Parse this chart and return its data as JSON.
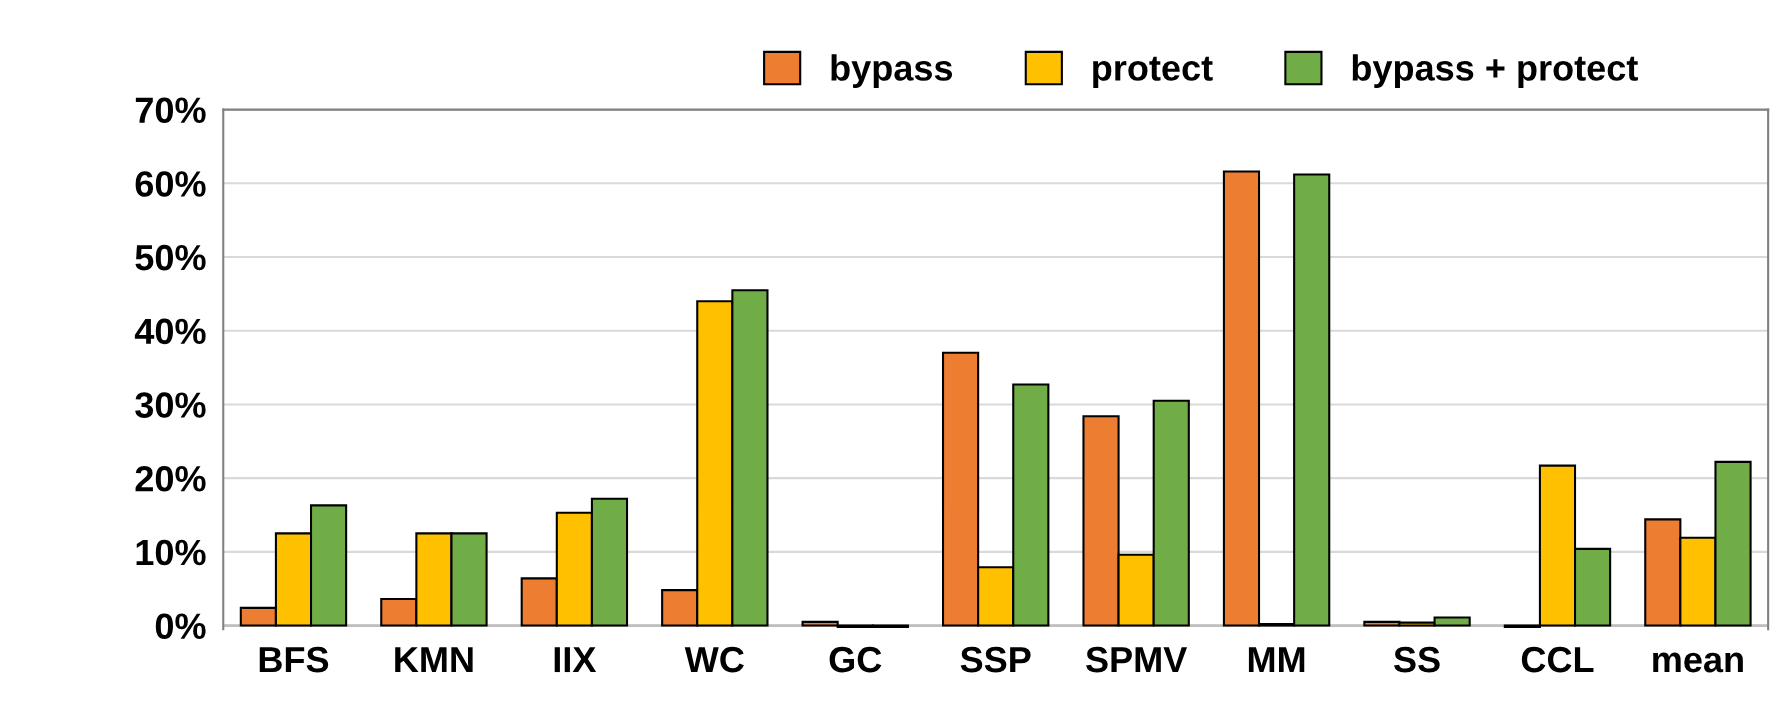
{
  "chart_data": {
    "type": "bar",
    "categories": [
      "BFS",
      "KMN",
      "IIX",
      "WC",
      "GC",
      "SSP",
      "SPMV",
      "MM",
      "SS",
      "CCL",
      "mean"
    ],
    "series": [
      {
        "name": "bypass",
        "color": "#ed7d31",
        "values": [
          2.4,
          3.6,
          6.4,
          4.8,
          0.5,
          37.0,
          28.4,
          61.6,
          0.5,
          -0.2,
          14.4
        ]
      },
      {
        "name": "protect",
        "color": "#ffc000",
        "values": [
          12.5,
          12.5,
          15.3,
          44.0,
          -0.2,
          7.9,
          9.6,
          0.2,
          0.4,
          21.7,
          11.9
        ]
      },
      {
        "name": "bypass + protect",
        "color": "#70ad47",
        "values": [
          16.3,
          12.5,
          17.2,
          45.5,
          -0.2,
          32.7,
          30.5,
          61.2,
          1.1,
          10.4,
          22.2
        ]
      }
    ],
    "ylim": [
      -0.5,
      70
    ],
    "yticks": [
      {
        "value": 0,
        "label": "0%"
      },
      {
        "value": 10,
        "label": "10%"
      },
      {
        "value": 20,
        "label": "20%"
      },
      {
        "value": 30,
        "label": "30%"
      },
      {
        "value": 40,
        "label": "40%"
      },
      {
        "value": 50,
        "label": "50%"
      },
      {
        "value": 60,
        "label": "60%"
      },
      {
        "value": 70,
        "label": "70%"
      }
    ],
    "grid": "y",
    "legend": "top right"
  }
}
